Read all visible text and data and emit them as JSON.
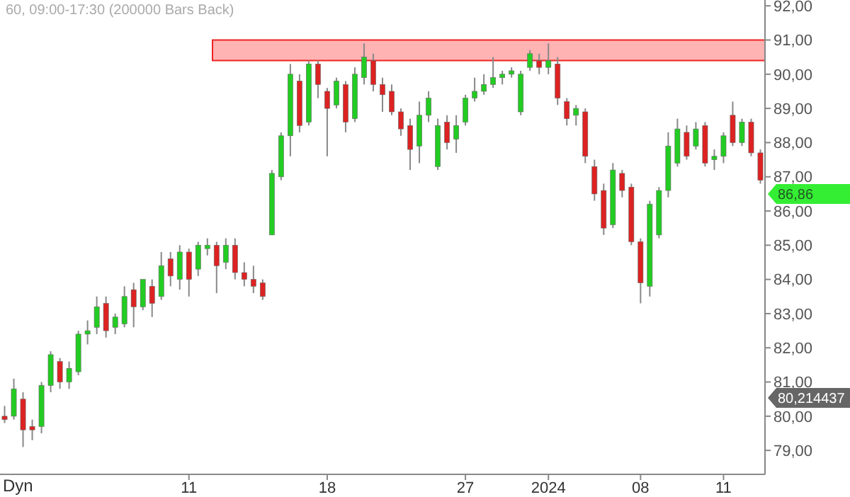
{
  "chart_data": {
    "type": "candlestick",
    "title": "60, 09:00-17:30 (200000 Bars Back)",
    "categories": [
      null,
      null,
      null,
      null,
      null,
      null,
      null,
      null,
      null,
      null,
      null,
      null,
      null,
      null,
      null,
      null,
      null,
      null,
      null,
      null,
      "11",
      null,
      null,
      null,
      null,
      null,
      null,
      null,
      null,
      null,
      null,
      null,
      null,
      null,
      null,
      "18",
      null,
      null,
      null,
      null,
      null,
      null,
      null,
      null,
      null,
      null,
      null,
      null,
      null,
      null,
      "27",
      null,
      null,
      null,
      null,
      null,
      null,
      null,
      null,
      "2024",
      null,
      null,
      null,
      null,
      null,
      null,
      null,
      null,
      null,
      "08",
      null,
      null,
      null,
      null,
      null,
      null,
      null,
      null,
      "11",
      null,
      null,
      null,
      null
    ],
    "ohlc": [
      [
        80.0,
        80.3,
        79.8,
        79.9
      ],
      [
        80.0,
        81.1,
        79.9,
        80.8
      ],
      [
        80.5,
        80.7,
        79.1,
        79.6
      ],
      [
        79.7,
        79.9,
        79.3,
        79.6
      ],
      [
        79.7,
        81.0,
        79.5,
        80.9
      ],
      [
        80.9,
        81.9,
        80.7,
        81.8
      ],
      [
        81.6,
        81.7,
        80.8,
        81.0
      ],
      [
        81.0,
        81.6,
        80.8,
        81.4
      ],
      [
        81.3,
        82.5,
        81.2,
        82.4
      ],
      [
        82.4,
        82.8,
        82.1,
        82.5
      ],
      [
        82.6,
        83.5,
        82.4,
        83.2
      ],
      [
        83.3,
        83.5,
        82.3,
        82.5
      ],
      [
        82.6,
        83.0,
        82.4,
        82.9
      ],
      [
        82.7,
        83.8,
        82.6,
        83.5
      ],
      [
        83.7,
        83.9,
        82.6,
        83.2
      ],
      [
        83.2,
        84.0,
        83.1,
        84.0
      ],
      [
        83.8,
        84.0,
        82.9,
        83.3
      ],
      [
        83.5,
        84.8,
        83.4,
        84.4
      ],
      [
        84.6,
        84.8,
        83.8,
        84.1
      ],
      [
        84.0,
        85.0,
        83.7,
        84.8
      ],
      [
        84.8,
        84.9,
        83.5,
        84.0
      ],
      [
        84.3,
        85.1,
        84.1,
        85.0
      ],
      [
        84.9,
        85.2,
        84.7,
        85.0
      ],
      [
        85.0,
        85.1,
        83.6,
        84.4
      ],
      [
        84.5,
        85.2,
        84.3,
        85.0
      ],
      [
        85.0,
        85.2,
        84.0,
        84.2
      ],
      [
        84.2,
        84.5,
        83.8,
        84.0
      ],
      [
        84.0,
        84.4,
        83.6,
        83.8
      ],
      [
        83.9,
        84.0,
        83.4,
        83.5
      ],
      [
        85.3,
        87.2,
        85.3,
        87.1
      ],
      [
        87.0,
        88.3,
        86.9,
        88.2
      ],
      [
        88.2,
        90.3,
        87.6,
        90.0
      ],
      [
        89.8,
        90.0,
        88.3,
        88.5
      ],
      [
        88.6,
        90.4,
        88.5,
        90.3
      ],
      [
        90.3,
        90.4,
        89.3,
        89.7
      ],
      [
        89.5,
        89.6,
        87.6,
        89.0
      ],
      [
        89.1,
        89.9,
        89.0,
        89.8
      ],
      [
        89.7,
        89.8,
        88.3,
        88.6
      ],
      [
        88.7,
        90.2,
        88.6,
        90.0
      ],
      [
        89.9,
        90.9,
        89.7,
        90.5
      ],
      [
        90.4,
        90.6,
        89.5,
        89.7
      ],
      [
        89.7,
        89.9,
        88.9,
        89.4
      ],
      [
        89.5,
        89.7,
        88.8,
        88.9
      ],
      [
        88.9,
        89.0,
        88.2,
        88.4
      ],
      [
        88.5,
        88.7,
        87.2,
        87.8
      ],
      [
        87.9,
        89.2,
        87.4,
        88.8
      ],
      [
        88.8,
        89.5,
        88.6,
        89.3
      ],
      [
        87.3,
        88.7,
        87.2,
        88.5
      ],
      [
        88.6,
        88.8,
        87.8,
        88.0
      ],
      [
        88.1,
        88.8,
        87.7,
        88.5
      ],
      [
        88.6,
        89.4,
        88.5,
        89.3
      ],
      [
        89.3,
        89.9,
        89.2,
        89.5
      ],
      [
        89.5,
        90.0,
        89.4,
        89.7
      ],
      [
        89.7,
        90.5,
        89.6,
        89.9
      ],
      [
        89.9,
        90.1,
        89.7,
        90.0
      ],
      [
        90.0,
        90.2,
        89.9,
        90.1
      ],
      [
        88.9,
        90.1,
        88.8,
        90.0
      ],
      [
        90.2,
        90.7,
        90.1,
        90.6
      ],
      [
        90.4,
        90.6,
        90.0,
        90.2
      ],
      [
        90.2,
        90.9,
        90.0,
        90.4
      ],
      [
        90.3,
        90.5,
        89.1,
        89.3
      ],
      [
        89.2,
        89.3,
        88.5,
        88.7
      ],
      [
        88.8,
        89.1,
        88.5,
        89.0
      ],
      [
        88.9,
        89.0,
        87.4,
        87.6
      ],
      [
        87.3,
        87.5,
        86.3,
        86.5
      ],
      [
        86.6,
        86.8,
        85.3,
        85.5
      ],
      [
        85.6,
        87.4,
        85.5,
        87.2
      ],
      [
        87.1,
        87.2,
        86.4,
        86.6
      ],
      [
        86.7,
        86.8,
        85.0,
        85.1
      ],
      [
        85.1,
        85.2,
        83.3,
        83.9
      ],
      [
        83.8,
        86.3,
        83.5,
        86.2
      ],
      [
        85.3,
        86.7,
        85.2,
        86.6
      ],
      [
        86.6,
        88.3,
        86.4,
        87.9
      ],
      [
        87.4,
        88.7,
        87.3,
        88.4
      ],
      [
        88.3,
        88.5,
        87.5,
        87.6
      ],
      [
        87.9,
        88.6,
        87.8,
        88.4
      ],
      [
        88.5,
        88.6,
        87.3,
        87.4
      ],
      [
        87.5,
        87.8,
        87.2,
        87.6
      ],
      [
        87.6,
        88.3,
        87.4,
        88.2
      ],
      [
        88.8,
        89.2,
        87.9,
        88.0
      ],
      [
        88.0,
        88.7,
        87.9,
        88.6
      ],
      [
        88.6,
        88.7,
        87.6,
        87.7
      ],
      [
        87.7,
        87.8,
        86.8,
        86.9
      ]
    ],
    "ylim": [
      78.3,
      92.17
    ],
    "yticks": [
      {
        "value": 79,
        "label": "79,00"
      },
      {
        "value": 80,
        "label": "80,00"
      },
      {
        "value": 81,
        "label": "81,00"
      },
      {
        "value": 82,
        "label": "82,00"
      },
      {
        "value": 83,
        "label": "83,00"
      },
      {
        "value": 84,
        "label": "84,00"
      },
      {
        "value": 85,
        "label": "85,00"
      },
      {
        "value": 86,
        "label": "86,00"
      },
      {
        "value": 87,
        "label": "87,00"
      },
      {
        "value": 88,
        "label": "88,00"
      },
      {
        "value": 89,
        "label": "89,00"
      },
      {
        "value": 90,
        "label": "90,00"
      },
      {
        "value": 91,
        "label": "91,00"
      },
      {
        "value": 92,
        "label": "92,00"
      }
    ],
    "bands": [
      {
        "axis": "y",
        "from": 90.4,
        "to": 91.0,
        "color": "#ffb3b3"
      }
    ],
    "annotations": [
      "86,86",
      "80,214437",
      "Dyn"
    ],
    "grid": false
  }
}
